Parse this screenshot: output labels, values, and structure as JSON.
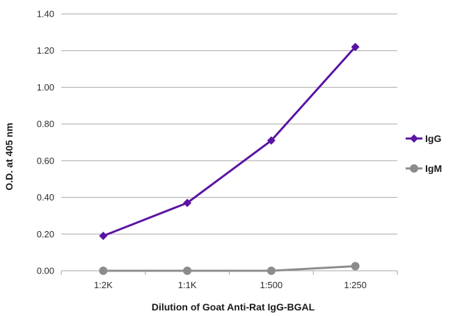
{
  "chart_data": {
    "type": "line",
    "title": "",
    "xlabel": "Dilution of Goat Anti-Rat IgG-BGAL",
    "ylabel": "O.D. at 405 nm",
    "categories": [
      "1:2K",
      "1:1K",
      "1:500",
      "1:250"
    ],
    "ylim": [
      0,
      1.4
    ],
    "yticks": [
      "0.00",
      "0.20",
      "0.40",
      "0.60",
      "0.80",
      "1.00",
      "1.20",
      "1.40"
    ],
    "grid": "horizontal",
    "legend_position": "right",
    "series": [
      {
        "name": "IgG",
        "values": [
          0.19,
          0.37,
          0.71,
          1.22
        ],
        "color": "#5a13a4",
        "marker": "diamond"
      },
      {
        "name": "IgM",
        "values": [
          0.0,
          0.0,
          0.0,
          0.025
        ],
        "color": "#8c8c8c",
        "marker": "circle"
      }
    ]
  }
}
